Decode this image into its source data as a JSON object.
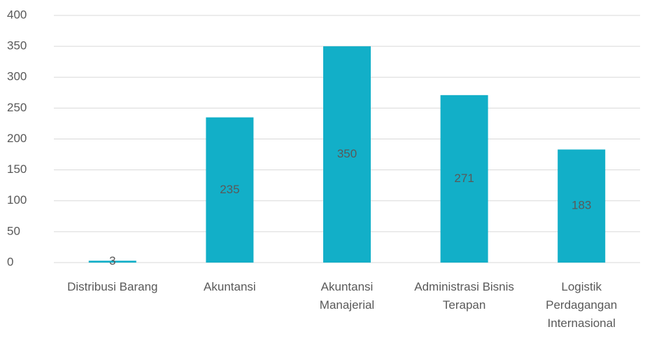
{
  "chart_data": {
    "type": "bar",
    "categories": [
      "Distribusi Barang",
      "Akuntansi",
      "Akuntansi Manajerial",
      "Administrasi Bisnis Terapan",
      "Logistik Perdagangan Internasional"
    ],
    "values": [
      3,
      235,
      350,
      271,
      183
    ],
    "color": "#12afc8",
    "ylim": [
      0,
      400
    ],
    "yticks": [
      0,
      50,
      100,
      150,
      200,
      250,
      300,
      350,
      400
    ],
    "grid": true
  }
}
